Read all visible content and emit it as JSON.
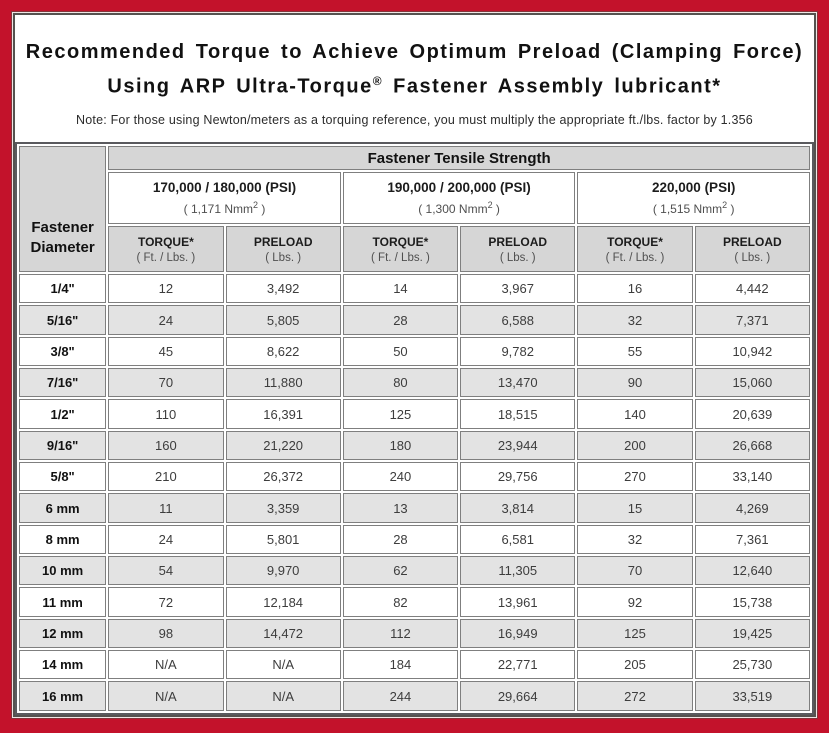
{
  "colors": {
    "frame_red": "#c3122b",
    "header_gray": "#d6d6d6",
    "stripe_gray": "#e3e3e3",
    "cell_border": "#7f7f7f"
  },
  "header": {
    "title_line1": "Recommended Torque to Achieve Optimum Preload (Clamping Force)",
    "title_line2_prefix": "Using ARP Ultra-Torque",
    "title_line2_sup": "®",
    "title_line2_suffix": " Fastener Assembly lubricant*",
    "note": "Note: For those using Newton/meters as a torquing reference, you must multiply the appropriate ft./lbs. factor by 1.356"
  },
  "table": {
    "corner_header": {
      "line1": "Fastener",
      "line2": "Diameter"
    },
    "top_header": "Fastener Tensile Strength",
    "strength_groups": [
      {
        "psi": "170,000 / 180,000 (PSI)",
        "nmm_open": "( 1,171 Nmm",
        "nmm_sup": "2",
        "nmm_close": " )"
      },
      {
        "psi": "190,000 / 200,000 (PSI)",
        "nmm_open": "( 1,300 Nmm",
        "nmm_sup": "2",
        "nmm_close": " )"
      },
      {
        "psi": "220,000 (PSI)",
        "nmm_open": "( 1,515 Nmm",
        "nmm_sup": "2",
        "nmm_close": " )"
      }
    ],
    "sub_headers": [
      {
        "label": "TORQUE*",
        "unit": "( Ft. / Lbs. )"
      },
      {
        "label": "PRELOAD",
        "unit": "( Lbs. )"
      },
      {
        "label": "TORQUE*",
        "unit": "( Ft. / Lbs. )"
      },
      {
        "label": "PRELOAD",
        "unit": "( Lbs. )"
      },
      {
        "label": "TORQUE*",
        "unit": "( Ft. / Lbs. )"
      },
      {
        "label": "PRELOAD",
        "unit": "( Lbs. )"
      }
    ],
    "rows": [
      {
        "diameter": "1/4\"",
        "values": [
          "12",
          "3,492",
          "14",
          "3,967",
          "16",
          "4,442"
        ]
      },
      {
        "diameter": "5/16\"",
        "values": [
          "24",
          "5,805",
          "28",
          "6,588",
          "32",
          "7,371"
        ]
      },
      {
        "diameter": "3/8\"",
        "values": [
          "45",
          "8,622",
          "50",
          "9,782",
          "55",
          "10,942"
        ]
      },
      {
        "diameter": "7/16\"",
        "values": [
          "70",
          "11,880",
          "80",
          "13,470",
          "90",
          "15,060"
        ]
      },
      {
        "diameter": "1/2\"",
        "values": [
          "110",
          "16,391",
          "125",
          "18,515",
          "140",
          "20,639"
        ]
      },
      {
        "diameter": "9/16\"",
        "values": [
          "160",
          "21,220",
          "180",
          "23,944",
          "200",
          "26,668"
        ]
      },
      {
        "diameter": "5/8\"",
        "values": [
          "210",
          "26,372",
          "240",
          "29,756",
          "270",
          "33,140"
        ]
      },
      {
        "diameter": "6 mm",
        "values": [
          "11",
          "3,359",
          "13",
          "3,814",
          "15",
          "4,269"
        ]
      },
      {
        "diameter": "8 mm",
        "values": [
          "24",
          "5,801",
          "28",
          "6,581",
          "32",
          "7,361"
        ]
      },
      {
        "diameter": "10 mm",
        "values": [
          "54",
          "9,970",
          "62",
          "11,305",
          "70",
          "12,640"
        ]
      },
      {
        "diameter": "11 mm",
        "values": [
          "72",
          "12,184",
          "82",
          "13,961",
          "92",
          "15,738"
        ]
      },
      {
        "diameter": "12 mm",
        "values": [
          "98",
          "14,472",
          "112",
          "16,949",
          "125",
          "19,425"
        ]
      },
      {
        "diameter": "14 mm",
        "values": [
          "N/A",
          "N/A",
          "184",
          "22,771",
          "205",
          "25,730"
        ]
      },
      {
        "diameter": "16 mm",
        "values": [
          "N/A",
          "N/A",
          "244",
          "29,664",
          "272",
          "33,519"
        ]
      }
    ]
  }
}
